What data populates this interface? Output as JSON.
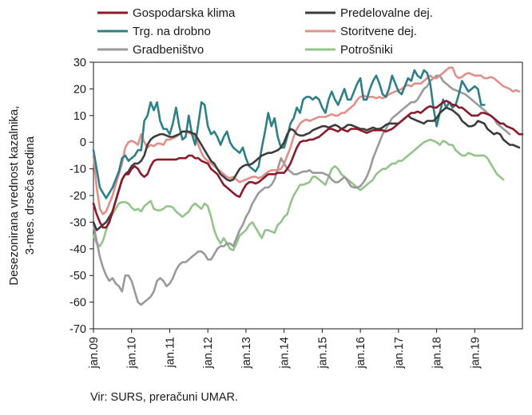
{
  "chart_data": {
    "type": "line",
    "ylabel_line1": "Desezonirana vrednost kazalnika,",
    "ylabel_line2": "3-mes. drseča sredina",
    "ylim": [
      -70,
      30
    ],
    "yticks": [
      30,
      20,
      10,
      0,
      -10,
      -20,
      -30,
      -40,
      -50,
      -60,
      -70
    ],
    "x_start": "jan.09",
    "x_end": "dec.19",
    "xticks": [
      "jan.09",
      "jan.10",
      "jan.11",
      "jan.12",
      "jan.13",
      "jan.14",
      "jan.15",
      "jan.16",
      "jan.17",
      "jan.18",
      "jan.19"
    ],
    "legend_placement": "top",
    "series": [
      {
        "name": "Gospodarska klima",
        "color": "#8b1a2b",
        "values": [
          -23,
          -27,
          -30,
          -32,
          -32,
          -30,
          -26,
          -22,
          -18,
          -14,
          -12,
          -12,
          -10,
          -9,
          -10,
          -12,
          -13,
          -12,
          -9,
          -7,
          -6.5,
          -6.5,
          -6.5,
          -6.5,
          -6.5,
          -6.5,
          -6.5,
          -6,
          -6,
          -6,
          -5,
          -5,
          -6,
          -6,
          -7,
          -7.5,
          -8,
          -10,
          -11,
          -12,
          -14,
          -16,
          -17,
          -18,
          -19,
          -20,
          -20.5,
          -18,
          -16,
          -15,
          -15,
          -15.5,
          -15,
          -14,
          -13,
          -12,
          -12,
          -12,
          -11.5,
          -11.5,
          -11.5,
          -10,
          -8,
          -5,
          -2,
          0,
          0.5,
          0.5,
          1,
          1,
          1.5,
          2,
          3,
          4,
          5,
          5,
          4.5,
          4,
          5,
          4.5,
          4,
          5,
          5,
          5,
          4.5,
          4,
          3.5,
          4,
          4.5,
          4.5,
          4.5,
          4.5,
          4,
          4.5,
          5,
          6,
          7,
          8,
          9,
          10,
          11,
          11,
          11.5,
          11,
          12,
          13,
          13.5,
          13,
          13,
          14,
          15,
          15.5,
          15,
          14,
          14,
          13,
          13,
          12,
          11,
          10,
          10,
          10,
          11,
          11,
          10.5,
          10,
          9,
          8,
          7,
          7,
          6,
          5.5,
          5,
          4,
          3,
          3
        ]
      },
      {
        "name": "Predelovalne dej.",
        "color": "#3c3c3c",
        "values": [
          -30,
          -33,
          -32,
          -31,
          -30,
          -28,
          -26,
          -22,
          -18,
          -14,
          -12,
          -11,
          -9,
          -8,
          -8,
          -7,
          -5,
          -1,
          1,
          2,
          2.5,
          3,
          3,
          2.5,
          2,
          2,
          2.5,
          3,
          4,
          4,
          4,
          3.5,
          3,
          1,
          -1,
          -3,
          -5,
          -7,
          -8,
          -10,
          -12,
          -13,
          -14,
          -14.5,
          -14,
          -12,
          -10,
          -9,
          -8.5,
          -8.5,
          -8,
          -7,
          -6,
          -5,
          -4.5,
          -4,
          -4,
          -3.5,
          -3,
          -2,
          0,
          3,
          5,
          4.5,
          3,
          2.5,
          2.5,
          3,
          3.5,
          4.5,
          5,
          5.5,
          6,
          6,
          5.5,
          6,
          6.5,
          6,
          5,
          5.5,
          6.5,
          6.5,
          6,
          5.5,
          5,
          5,
          4.5,
          5,
          5.5,
          5,
          5,
          5.5,
          6.5,
          7,
          7,
          7,
          7,
          8,
          9,
          10,
          9,
          8.5,
          8,
          7.5,
          7,
          8,
          8,
          8,
          9,
          11,
          12,
          13,
          12.5,
          12,
          11,
          10,
          8,
          7,
          6,
          6,
          6.5,
          8,
          7.5,
          7,
          5,
          4,
          3,
          3.5,
          3,
          1,
          0,
          -1,
          -1,
          -1.5,
          -2
        ]
      },
      {
        "name": "Trg. na drobno",
        "color": "#2f7f87",
        "values": [
          -3,
          -10,
          -17,
          -19,
          -21,
          -19,
          -17,
          -14,
          -11,
          -6,
          -5,
          -7,
          -6,
          -5,
          -3,
          -3,
          8,
          10,
          15,
          12,
          15,
          8,
          5,
          5,
          3,
          7,
          13,
          6,
          1,
          2,
          10,
          3,
          -1,
          7,
          15,
          14,
          6,
          3,
          4,
          2,
          -1,
          2,
          4,
          0,
          -2,
          -3,
          -4,
          -2,
          -6,
          -9,
          -10,
          -11,
          -9,
          -2,
          4,
          11,
          6,
          9,
          2,
          -2,
          -2,
          2,
          7,
          9,
          13,
          11,
          16,
          17,
          17,
          16,
          17,
          16,
          13,
          11,
          16,
          19,
          16,
          14,
          17,
          20,
          16,
          16,
          19,
          22,
          24,
          16,
          16,
          20,
          23,
          25,
          22,
          18,
          17,
          20,
          25,
          22,
          19,
          18,
          21,
          24,
          23,
          27,
          25,
          24,
          27,
          26,
          22,
          13,
          6,
          11,
          16,
          13,
          15,
          13,
          14,
          18,
          23,
          21,
          19,
          20,
          21,
          20,
          14,
          14
        ]
      },
      {
        "name": "Storitvene dej.",
        "color": "#e0908a",
        "values": [
          -5,
          -17,
          -25,
          -27,
          -26,
          -23,
          -20,
          -16,
          -12,
          -8,
          -2,
          0,
          0.5,
          0,
          -1,
          3,
          0,
          -2,
          -1,
          -1.5,
          -0.5,
          -0.5,
          -1,
          1,
          1,
          1.5,
          2,
          3,
          4,
          4,
          3.5,
          3,
          2,
          -1,
          -4,
          -6,
          -7,
          -8,
          -9,
          -10,
          -11,
          -12,
          -13,
          -13.5,
          -13,
          -14,
          -15,
          -14.5,
          -14,
          -13.5,
          -13,
          -13,
          -13.5,
          -13,
          -12,
          -11,
          -10.5,
          -10.5,
          -10.5,
          -10,
          -8,
          -5,
          -2,
          2,
          5,
          7,
          8,
          8.5,
          8,
          8.5,
          9,
          9.5,
          9.5,
          9.5,
          10,
          10.5,
          10,
          10,
          11,
          11,
          12,
          13,
          14,
          16,
          17,
          17.5,
          17,
          17,
          17,
          16.5,
          17,
          16.5,
          17,
          18,
          18.5,
          19,
          19.5,
          20,
          21,
          21.5,
          21,
          22,
          22,
          22,
          23,
          24,
          25,
          24,
          24,
          25,
          26,
          27,
          28,
          28,
          25,
          24,
          24.5,
          25.5,
          26,
          25.5,
          25,
          25,
          25,
          24,
          24,
          24.5,
          24,
          23,
          22,
          21,
          20.5,
          20,
          19,
          19.5,
          19
        ]
      },
      {
        "name": "Gradbeništvo",
        "color": "#9a9a9a",
        "values": [
          -31,
          -37,
          -43,
          -47,
          -50,
          -52,
          -51,
          -53,
          -54,
          -56,
          -50,
          -50,
          -52,
          -56,
          -60,
          -61,
          -60,
          -59,
          -58,
          -56,
          -52,
          -51,
          -52,
          -54,
          -53,
          -51,
          -48,
          -46,
          -45,
          -45,
          -44,
          -43,
          -42,
          -41,
          -41,
          -42,
          -44,
          -44,
          -42,
          -40,
          -39,
          -39,
          -38,
          -38,
          -39,
          -36,
          -33,
          -31,
          -28,
          -26,
          -23,
          -21,
          -19,
          -18,
          -17,
          -17,
          -16,
          -14,
          -10,
          -6,
          -8,
          -10,
          -11,
          -12,
          -12,
          -11.5,
          -11,
          -11,
          -10.5,
          -11.5,
          -11.5,
          -11.5,
          -11.5,
          -12,
          -12.5,
          -14,
          -15,
          -15,
          -14,
          -13,
          -14.5,
          -16.5,
          -17,
          -17,
          -16.5,
          -15,
          -13,
          -10,
          -6,
          -3,
          0,
          3,
          5,
          7,
          9,
          10,
          11,
          12,
          13,
          14,
          15,
          15,
          16,
          18,
          20,
          21,
          23,
          24,
          25,
          25,
          23,
          22,
          21,
          20,
          19.5,
          19,
          18.5,
          18,
          17,
          16,
          15,
          14,
          13,
          12,
          11,
          10,
          9,
          7,
          6,
          5,
          4,
          3
        ]
      },
      {
        "name": "Potrošniki",
        "color": "#93c48a",
        "values": [
          -35,
          -38,
          -39,
          -37,
          -33,
          -29,
          -27,
          -25,
          -23,
          -22.5,
          -22.5,
          -23,
          -24.5,
          -25.5,
          -25,
          -26,
          -24,
          -23,
          -22,
          -25,
          -25.5,
          -25.5,
          -25,
          -24,
          -24,
          -24.5,
          -26,
          -27,
          -28,
          -27,
          -26,
          -24,
          -23,
          -24,
          -25,
          -23,
          -24,
          -28,
          -33,
          -36,
          -38,
          -36,
          -38,
          -40,
          -40.5,
          -38,
          -35,
          -34,
          -33,
          -31,
          -30,
          -32,
          -34,
          -36,
          -33,
          -33,
          -33.5,
          -34,
          -31,
          -30,
          -28,
          -27,
          -23,
          -20,
          -18,
          -16,
          -16,
          -15.5,
          -15,
          -13,
          -13,
          -14,
          -15,
          -16,
          -13,
          -10,
          -9,
          -10,
          -12,
          -13,
          -14,
          -15,
          -16,
          -17,
          -18,
          -17,
          -16,
          -15,
          -14,
          -12,
          -11,
          -10,
          -10,
          -9,
          -8,
          -8,
          -7,
          -7,
          -6,
          -5,
          -4,
          -3,
          -2,
          -1,
          0,
          0.5,
          1,
          0.5,
          0,
          -1,
          0.5,
          0,
          -1,
          -1,
          -3,
          -4,
          -5,
          -5,
          -4,
          -4.5,
          -5,
          -5,
          -5,
          -5,
          -6,
          -8,
          -10,
          -12,
          -13,
          -14
        ]
      }
    ]
  },
  "source": "Vir: SURS, preračuni UMAR."
}
